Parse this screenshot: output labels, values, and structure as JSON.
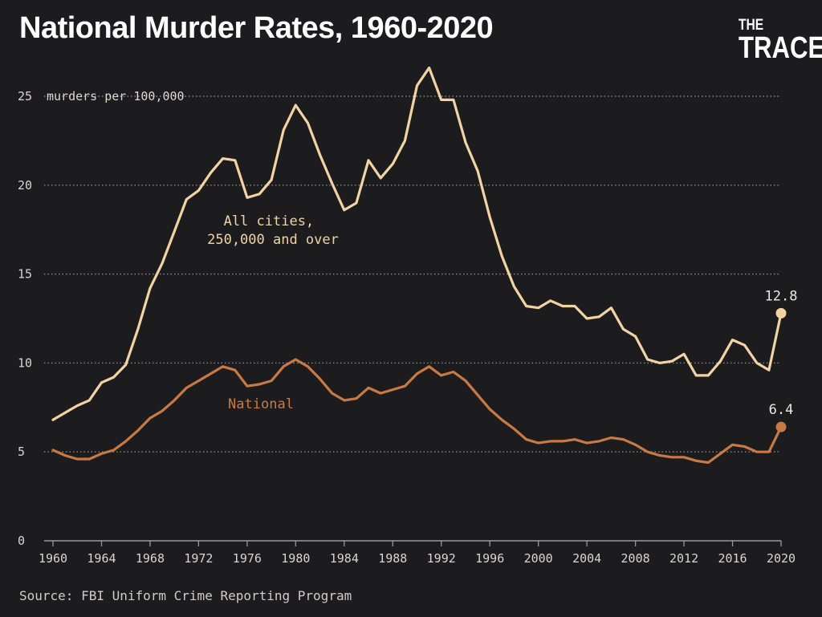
{
  "title": "National Murder Rates, 1960-2020",
  "logo": {
    "line1": "THE",
    "line2": "TRACE"
  },
  "source": "Source: FBI Uniform Crime Reporting Program",
  "colors": {
    "background": "#1c1c1f",
    "cities": "#f2d3a4",
    "national": "#c77a45",
    "grid": "#8a8a8a",
    "text": "#d9d6d0"
  },
  "chart_data": {
    "type": "line",
    "title": "National Murder Rates, 1960-2020",
    "ylabel": "murders per 100,000",
    "xlabel": "",
    "xlim": [
      1960,
      2020
    ],
    "ylim": [
      0,
      25
    ],
    "grid": true,
    "x_ticks": [
      1960,
      1964,
      1968,
      1972,
      1976,
      1980,
      1984,
      1988,
      1992,
      1996,
      2000,
      2004,
      2008,
      2012,
      2016,
      2020
    ],
    "y_ticks": [
      0,
      5,
      10,
      15,
      20,
      25
    ],
    "x": [
      1960,
      1961,
      1962,
      1963,
      1964,
      1965,
      1966,
      1967,
      1968,
      1969,
      1970,
      1971,
      1972,
      1973,
      1974,
      1975,
      1976,
      1977,
      1978,
      1979,
      1980,
      1981,
      1982,
      1983,
      1984,
      1985,
      1986,
      1987,
      1988,
      1989,
      1990,
      1991,
      1992,
      1993,
      1994,
      1995,
      1996,
      1997,
      1998,
      1999,
      2000,
      2001,
      2002,
      2003,
      2004,
      2005,
      2006,
      2007,
      2008,
      2009,
      2010,
      2011,
      2012,
      2013,
      2014,
      2015,
      2016,
      2017,
      2018,
      2019,
      2020
    ],
    "series": [
      {
        "name": "All cities, 250,000 and over",
        "values": [
          6.8,
          7.2,
          7.6,
          7.9,
          8.9,
          9.2,
          9.9,
          11.9,
          14.2,
          15.6,
          17.4,
          19.2,
          19.7,
          20.7,
          21.5,
          21.4,
          19.3,
          19.5,
          20.3,
          23.1,
          24.5,
          23.5,
          21.7,
          20.1,
          18.6,
          19.0,
          21.4,
          20.4,
          21.2,
          22.5,
          25.6,
          26.6,
          24.8,
          24.8,
          22.4,
          20.8,
          18.2,
          16.0,
          14.3,
          13.2,
          13.1,
          13.5,
          13.2,
          13.2,
          12.5,
          12.6,
          13.1,
          11.9,
          11.5,
          10.2,
          10.0,
          10.1,
          10.5,
          9.3,
          9.3,
          10.1,
          11.3,
          11.0,
          10.0,
          9.6,
          12.8
        ]
      },
      {
        "name": "National",
        "values": [
          5.1,
          4.8,
          4.6,
          4.6,
          4.9,
          5.1,
          5.6,
          6.2,
          6.9,
          7.3,
          7.9,
          8.6,
          9.0,
          9.4,
          9.8,
          9.6,
          8.7,
          8.8,
          9.0,
          9.8,
          10.2,
          9.8,
          9.1,
          8.3,
          7.9,
          8.0,
          8.6,
          8.3,
          8.5,
          8.7,
          9.4,
          9.8,
          9.3,
          9.5,
          9.0,
          8.2,
          7.4,
          6.8,
          6.3,
          5.7,
          5.5,
          5.6,
          5.6,
          5.7,
          5.5,
          5.6,
          5.8,
          5.7,
          5.4,
          5.0,
          4.8,
          4.7,
          4.7,
          4.5,
          4.4,
          4.9,
          5.4,
          5.3,
          5.0,
          5.0,
          6.4
        ]
      }
    ],
    "end_labels": [
      "12.8",
      "6.4"
    ]
  }
}
